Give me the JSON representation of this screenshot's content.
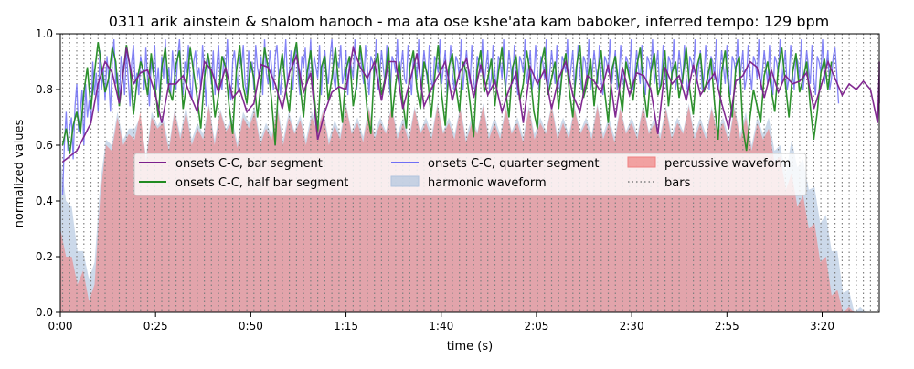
{
  "chart_data": {
    "type": "line",
    "title": "0311 arik ainstein & shalom hanoch - ma ata ose kshe'ata kam baboker, inferred tempo: 129 bpm",
    "xlabel": "time (s)",
    "ylabel": "normalized values",
    "xlim": [
      0,
      215
    ],
    "ylim": [
      0,
      1.0
    ],
    "x_ticks": [
      {
        "value": 0,
        "label": "0:00"
      },
      {
        "value": 25,
        "label": "0:25"
      },
      {
        "value": 50,
        "label": "0:50"
      },
      {
        "value": 75,
        "label": "1:15"
      },
      {
        "value": 100,
        "label": "1:40"
      },
      {
        "value": 125,
        "label": "2:05"
      },
      {
        "value": 150,
        "label": "2:30"
      },
      {
        "value": 175,
        "label": "2:55"
      },
      {
        "value": 200,
        "label": "3:20"
      }
    ],
    "y_ticks": [
      {
        "value": 0.0,
        "label": "0.0"
      },
      {
        "value": 0.2,
        "label": "0.2"
      },
      {
        "value": 0.4,
        "label": "0.4"
      },
      {
        "value": 0.6,
        "label": "0.6"
      },
      {
        "value": 0.8,
        "label": "0.8"
      },
      {
        "value": 1.0,
        "label": "1.0"
      }
    ],
    "legend_placement": "center",
    "legend": [
      {
        "label": "onsets C-C, bar segment",
        "kind": "line",
        "color": "#7b1f8c"
      },
      {
        "label": "onsets C-C, half bar segment",
        "kind": "line",
        "color": "#228b22"
      },
      {
        "label": "onsets C-C, quarter segment",
        "kind": "line",
        "color": "#6f6ff5"
      },
      {
        "label": "harmonic waveform",
        "kind": "patch",
        "color": "#b0c4de"
      },
      {
        "label": "percussive waveform",
        "kind": "patch",
        "color": "#f08080"
      },
      {
        "label": "bars",
        "kind": "dotted",
        "color": "#808080"
      }
    ],
    "bars": {
      "start": 0.6,
      "interval_s": 1.8605,
      "end": 215
    },
    "series": [
      {
        "name": "onsets C-C, bar segment",
        "color": "#7b1f8c",
        "x_start": 0.6,
        "x_step": 1.8605,
        "values": [
          0.54,
          0.56,
          0.58,
          0.63,
          0.68,
          0.82,
          0.9,
          0.86,
          0.75,
          0.95,
          0.82,
          0.86,
          0.87,
          0.79,
          0.68,
          0.82,
          0.82,
          0.85,
          0.78,
          0.72,
          0.9,
          0.87,
          0.79,
          0.88,
          0.77,
          0.8,
          0.72,
          0.75,
          0.89,
          0.88,
          0.82,
          0.73,
          0.86,
          0.92,
          0.79,
          0.86,
          0.62,
          0.72,
          0.79,
          0.81,
          0.8,
          0.95,
          0.88,
          0.84,
          0.9,
          0.76,
          0.9,
          0.9,
          0.73,
          0.83,
          0.93,
          0.74,
          0.8,
          0.85,
          0.9,
          0.76,
          0.86,
          0.91,
          0.77,
          0.89,
          0.78,
          0.83,
          0.72,
          0.8,
          0.86,
          0.68,
          0.88,
          0.82,
          0.87,
          0.73,
          0.84,
          0.9,
          0.78,
          0.72,
          0.85,
          0.83,
          0.79,
          0.89,
          0.7,
          0.88,
          0.78,
          0.86,
          0.85,
          0.8,
          0.64,
          0.88,
          0.82,
          0.85,
          0.76,
          0.89,
          0.78,
          0.82,
          0.86,
          0.75,
          0.66,
          0.83,
          0.85,
          0.9,
          0.88,
          0.77,
          0.87,
          0.79,
          0.85,
          0.82,
          0.83,
          0.86,
          0.73,
          0.81,
          0.9,
          0.84,
          0.78,
          0.82,
          0.8,
          0.83,
          0.8,
          0.68,
          0.86,
          0.79,
          0.88,
          0.75,
          0.78,
          0.9
        ]
      },
      {
        "name": "onsets C-C, half bar segment",
        "color": "#228b22",
        "x_start": 0.6,
        "x_step": 0.9302,
        "values": [
          0.6,
          0.66,
          0.57,
          0.67,
          0.72,
          0.64,
          0.79,
          0.88,
          0.73,
          0.86,
          0.97,
          0.88,
          0.79,
          0.84,
          0.95,
          0.9,
          0.74,
          0.85,
          0.96,
          0.88,
          0.71,
          0.83,
          0.9,
          0.86,
          0.78,
          0.93,
          0.82,
          0.7,
          0.88,
          0.95,
          0.8,
          0.76,
          0.89,
          0.94,
          0.73,
          0.82,
          0.95,
          0.86,
          0.77,
          0.66,
          0.84,
          0.93,
          0.85,
          0.7,
          0.78,
          0.92,
          0.88,
          0.74,
          0.64,
          0.86,
          0.96,
          0.81,
          0.75,
          0.9,
          0.84,
          0.7,
          0.82,
          0.95,
          0.88,
          0.76,
          0.6,
          0.84,
          0.93,
          0.8,
          0.72,
          0.9,
          0.97,
          0.82,
          0.7,
          0.86,
          0.94,
          0.78,
          0.65,
          0.88,
          0.92,
          0.76,
          0.84,
          0.95,
          0.8,
          0.68,
          0.87,
          0.92,
          0.74,
          0.82,
          0.96,
          0.86,
          0.72,
          0.64,
          0.88,
          0.93,
          0.78,
          0.84,
          0.95,
          0.7,
          0.82,
          0.9,
          0.76,
          0.66,
          0.88,
          0.94,
          0.8,
          0.73,
          0.9,
          0.85,
          0.7,
          0.84,
          0.96,
          0.78,
          0.67,
          0.88,
          0.93,
          0.81,
          0.72,
          0.9,
          0.86,
          0.75,
          0.63,
          0.87,
          0.94,
          0.79,
          0.84,
          0.91,
          0.74,
          0.86,
          0.95,
          0.8,
          0.7,
          0.88,
          0.92,
          0.76,
          0.82,
          0.94,
          0.85,
          0.72,
          0.66,
          0.89,
          0.95,
          0.78,
          0.84,
          0.9,
          0.73,
          0.86,
          0.93,
          0.8,
          0.7,
          0.88,
          0.96,
          0.77,
          0.82,
          0.91,
          0.74,
          0.86,
          0.94,
          0.79,
          0.68,
          0.87,
          0.92,
          0.81,
          0.72,
          0.9,
          0.84,
          0.76,
          0.88,
          0.95,
          0.8,
          0.7,
          0.86,
          0.93,
          0.78,
          0.82,
          0.94,
          0.74,
          0.86,
          0.9,
          0.77,
          0.84,
          0.95,
          0.8,
          0.71,
          0.88,
          0.93,
          0.79,
          0.84,
          0.91,
          0.75,
          0.62,
          0.86,
          0.94,
          0.8,
          0.7,
          0.88,
          0.92,
          0.66,
          0.58,
          0.7,
          0.8,
          0.74,
          0.68,
          0.85,
          0.9,
          0.8,
          0.72,
          0.88,
          0.95,
          0.82,
          0.7,
          0.86,
          0.93,
          0.79,
          0.84,
          0.9,
          0.74,
          0.62,
          0.72,
          0.86,
          0.91,
          0.8,
          0.9
        ]
      },
      {
        "name": "onsets C-C, quarter segment",
        "color": "#6f6ff5",
        "x_start": 0.6,
        "x_step": 0.4651,
        "values": [
          0.42,
          0.6,
          0.72,
          0.58,
          0.66,
          0.7,
          0.55,
          0.74,
          0.82,
          0.65,
          0.72,
          0.8,
          0.6,
          0.82,
          0.7,
          0.76,
          0.68,
          0.9,
          0.78,
          0.86,
          0.72,
          0.94,
          0.8,
          0.88,
          0.76,
          0.92,
          0.84,
          0.72,
          0.9,
          0.98,
          0.82,
          0.86,
          0.76,
          0.92,
          0.88,
          0.78,
          0.94,
          0.84,
          0.74,
          0.9,
          0.96,
          0.82,
          0.86,
          0.78,
          0.92,
          0.88,
          0.8,
          0.95,
          0.84,
          0.74,
          0.9,
          0.86,
          0.96,
          0.8,
          0.88,
          0.76,
          0.92,
          0.84,
          0.98,
          0.82,
          0.88,
          0.78,
          0.94,
          0.86,
          0.8,
          0.92,
          0.98,
          0.84,
          0.78,
          0.9,
          0.86,
          0.96,
          0.82,
          0.76,
          0.9,
          0.94,
          0.84,
          0.88,
          0.8,
          0.96,
          0.86,
          0.74,
          0.92,
          0.88,
          0.82,
          0.94,
          0.78,
          0.88,
          0.96,
          0.84,
          0.8,
          0.92,
          0.86,
          0.98,
          0.82,
          0.76,
          0.9,
          0.94,
          0.86,
          0.8,
          0.92,
          0.88,
          0.96,
          0.82,
          0.78,
          0.94,
          0.86,
          0.9,
          0.8,
          0.96,
          0.88,
          0.84,
          0.92,
          0.78,
          0.98,
          0.86,
          0.82,
          0.94,
          0.88,
          0.8,
          0.92,
          0.96,
          0.84,
          0.78,
          0.9,
          0.88,
          0.98,
          0.82,
          0.86,
          0.94,
          0.8,
          0.9,
          0.96,
          0.84,
          0.78,
          0.92,
          0.88,
          0.95,
          0.82,
          0.86,
          0.98,
          0.8,
          0.92,
          0.88,
          0.84,
          0.96,
          0.78,
          0.9,
          0.94,
          0.86,
          0.82,
          0.92,
          0.98,
          0.84,
          0.8,
          0.9,
          0.88,
          0.96,
          0.82,
          0.86,
          0.94,
          0.78,
          0.92,
          0.88,
          0.84,
          0.98,
          0.8,
          0.9,
          0.94,
          0.86,
          0.82,
          0.96,
          0.88,
          0.78,
          0.92,
          0.9,
          0.84,
          0.98,
          0.8,
          0.86,
          0.94,
          0.88,
          0.82,
          0.96,
          0.84,
          0.78,
          0.92,
          0.9,
          0.86,
          0.98,
          0.8,
          0.88,
          0.94,
          0.84,
          0.82,
          0.96,
          0.86,
          0.78,
          0.92,
          0.9,
          0.84,
          0.98,
          0.8,
          0.86,
          0.94,
          0.88,
          0.82,
          0.96,
          0.84,
          0.8,
          0.92,
          0.9,
          0.86,
          0.98,
          0.82,
          0.88,
          0.94,
          0.78,
          0.84,
          0.96,
          0.86,
          0.8,
          0.92,
          0.9,
          0.84,
          0.98,
          0.8,
          0.88,
          0.94,
          0.86,
          0.82,
          0.96,
          0.84,
          0.78,
          0.92,
          0.9,
          0.86,
          0.98,
          0.82,
          0.88,
          0.94,
          0.8,
          0.84,
          0.96,
          0.86,
          0.8,
          0.92,
          0.9,
          0.84,
          0.98,
          0.8,
          0.86,
          0.94,
          0.88,
          0.82,
          0.96,
          0.84,
          0.78,
          0.92,
          0.9,
          0.86,
          0.98,
          0.82,
          0.88,
          0.94,
          0.8,
          0.84,
          0.96,
          0.86,
          0.8,
          0.92,
          0.9,
          0.84,
          0.98,
          0.8,
          0.86,
          0.94,
          0.88,
          0.82,
          0.96,
          0.84,
          0.78,
          0.92,
          0.9,
          0.86,
          0.98,
          0.82,
          0.88,
          0.94,
          0.8,
          0.84,
          0.96,
          0.86,
          0.8,
          0.92,
          0.9,
          0.84,
          0.98,
          0.8,
          0.86,
          0.94,
          0.88,
          0.82,
          0.96,
          0.84,
          0.78,
          0.92,
          0.9,
          0.86,
          0.98,
          0.82,
          0.88,
          0.94,
          0.8,
          0.84,
          0.96,
          0.86,
          0.8,
          0.92,
          0.9,
          0.84,
          0.98,
          0.8,
          0.86,
          0.94,
          0.88,
          0.82,
          0.96,
          0.84,
          0.78,
          0.92,
          0.9,
          0.86,
          0.98,
          0.82,
          0.88,
          0.94,
          0.8,
          0.84,
          0.96,
          0.86,
          0.8,
          0.92,
          0.9,
          0.84,
          0.98,
          0.8,
          0.86,
          0.94,
          0.88,
          0.82,
          0.96,
          0.84,
          0.78,
          0.92,
          0.9,
          0.86,
          0.98,
          0.82,
          0.88,
          0.94,
          0.8,
          0.84,
          0.96,
          0.86,
          0.8,
          0.92,
          0.9,
          0.84,
          0.98,
          0.8,
          0.86,
          0.94,
          0.88,
          0.82,
          0.96,
          0.84,
          0.78,
          0.92,
          0.9,
          0.86,
          0.98,
          0.82,
          0.88,
          0.94,
          0.8,
          0.84,
          0.96,
          0.86,
          0.8,
          0.92,
          0.9,
          0.84,
          0.98,
          0.8,
          0.86,
          0.94,
          0.88,
          0.82,
          0.96,
          0.84,
          0.78,
          0.92,
          0.9,
          0.86,
          0.98,
          0.82,
          0.88,
          0.94,
          0.8,
          0.84,
          0.96,
          0.86,
          0.8,
          0.92,
          0.9,
          0.84,
          0.98,
          0.8,
          0.86,
          0.94,
          0.88,
          0.82,
          0.96,
          0.84,
          0.78,
          0.92,
          0.9,
          0.86,
          0.98,
          0.82,
          0.88,
          0.94,
          0.8,
          0.84,
          0.92,
          0.95,
          0.86,
          0.75
        ]
      }
    ],
    "waveforms": {
      "harmonic": {
        "color": "#b0c4de",
        "x_step": 1.5,
        "envelope": [
          0.55,
          0.48,
          0.38,
          0.3,
          0.22,
          0.2,
          0.18,
          0.55,
          0.62,
          0.68,
          0.72,
          0.7,
          0.66,
          0.74,
          0.7,
          0.64,
          0.72,
          0.75,
          0.7,
          0.68,
          0.73,
          0.72,
          0.74,
          0.7,
          0.68,
          0.72,
          0.75,
          0.7,
          0.73,
          0.74,
          0.7,
          0.69,
          0.72,
          0.76,
          0.74,
          0.7,
          0.68,
          0.72,
          0.75,
          0.7,
          0.72,
          0.73,
          0.71,
          0.7,
          0.72,
          0.74,
          0.73,
          0.7,
          0.69,
          0.72,
          0.75,
          0.73,
          0.7,
          0.71,
          0.74,
          0.72,
          0.7,
          0.73,
          0.75,
          0.72,
          0.7,
          0.71,
          0.74,
          0.73,
          0.7,
          0.72,
          0.75,
          0.73,
          0.7,
          0.72,
          0.74,
          0.71,
          0.7,
          0.73,
          0.75,
          0.72,
          0.7,
          0.72,
          0.74,
          0.73,
          0.7,
          0.71,
          0.74,
          0.72,
          0.7,
          0.73,
          0.75,
          0.72,
          0.7,
          0.72,
          0.74,
          0.73,
          0.7,
          0.72,
          0.75,
          0.72,
          0.7,
          0.71,
          0.74,
          0.73,
          0.7,
          0.72,
          0.75,
          0.73,
          0.7,
          0.72,
          0.74,
          0.72,
          0.7,
          0.73,
          0.75,
          0.72,
          0.7,
          0.72,
          0.74,
          0.73,
          0.7,
          0.71,
          0.74,
          0.72,
          0.72,
          0.68,
          0.7,
          0.72,
          0.7,
          0.66,
          0.6,
          0.58,
          0.62,
          0.6,
          0.55,
          0.52,
          0.45,
          0.4,
          0.35,
          0.3,
          0.22,
          0.15,
          0.08,
          0.04,
          0.02,
          0.01,
          0.0
        ]
      },
      "percussive": {
        "color": "#f08080",
        "x_step": 1.5,
        "envelope": [
          0.3,
          0.28,
          0.2,
          0.18,
          0.15,
          0.12,
          0.1,
          0.5,
          0.6,
          0.66,
          0.7,
          0.68,
          0.64,
          0.7,
          0.72,
          0.62,
          0.7,
          0.74,
          0.68,
          0.66,
          0.72,
          0.7,
          0.72,
          0.68,
          0.66,
          0.7,
          0.74,
          0.68,
          0.72,
          0.73,
          0.68,
          0.67,
          0.7,
          0.74,
          0.72,
          0.68,
          0.66,
          0.7,
          0.73,
          0.68,
          0.7,
          0.72,
          0.69,
          0.68,
          0.7,
          0.73,
          0.72,
          0.68,
          0.67,
          0.7,
          0.74,
          0.72,
          0.68,
          0.69,
          0.73,
          0.7,
          0.68,
          0.72,
          0.74,
          0.7,
          0.68,
          0.69,
          0.73,
          0.72,
          0.68,
          0.7,
          0.74,
          0.72,
          0.68,
          0.7,
          0.73,
          0.69,
          0.68,
          0.72,
          0.74,
          0.7,
          0.68,
          0.7,
          0.73,
          0.72,
          0.68,
          0.69,
          0.73,
          0.7,
          0.68,
          0.72,
          0.74,
          0.7,
          0.68,
          0.7,
          0.73,
          0.72,
          0.68,
          0.7,
          0.74,
          0.7,
          0.68,
          0.69,
          0.73,
          0.72,
          0.68,
          0.7,
          0.74,
          0.72,
          0.68,
          0.7,
          0.73,
          0.7,
          0.68,
          0.72,
          0.74,
          0.7,
          0.68,
          0.7,
          0.73,
          0.72,
          0.68,
          0.69,
          0.73,
          0.7,
          0.7,
          0.66,
          0.68,
          0.7,
          0.66,
          0.62,
          0.56,
          0.52,
          0.5,
          0.46,
          0.42,
          0.38,
          0.32,
          0.26,
          0.2,
          0.14,
          0.08,
          0.04,
          0.02,
          0.01,
          0.0,
          0.0,
          0.0
        ]
      }
    }
  }
}
